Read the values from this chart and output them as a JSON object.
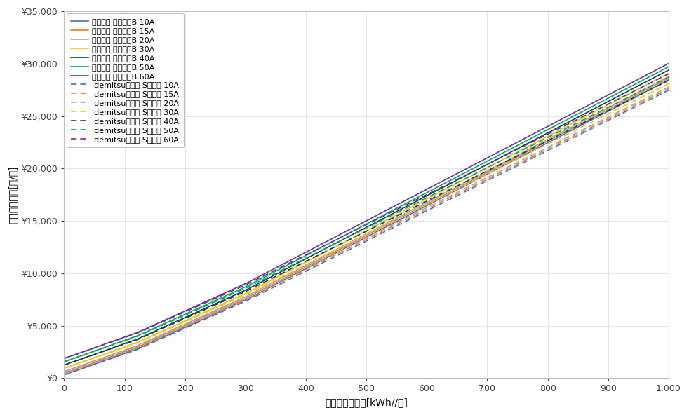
{
  "title": "",
  "xlabel": "月間電力使用量[kWh//月]",
  "ylabel": "推定電気料金[円/月]",
  "xlim": [
    0,
    1000
  ],
  "ylim": [
    0,
    35000
  ],
  "xticks": [
    0,
    100,
    200,
    300,
    400,
    500,
    600,
    700,
    800,
    900,
    1000
  ],
  "yticks": [
    0,
    5000,
    10000,
    15000,
    20000,
    25000,
    30000,
    35000
  ],
  "colors": {
    "10A": "#4472C4",
    "15A": "#ED7D31",
    "20A": "#A5A5A5",
    "30A": "#FFC000",
    "40A": "#1F3864",
    "50A": "#00B050",
    "60A": "#7030A0"
  },
  "chubu": {
    "10A": {
      "base": 311.75,
      "t1_limit": 120,
      "t1_rate": 20.37,
      "t2_limit": 300,
      "t2_rate": 26.07,
      "t3_rate": 30.02
    },
    "15A": {
      "base": 467.63,
      "t1_limit": 120,
      "t1_rate": 20.37,
      "t2_limit": 300,
      "t2_rate": 26.07,
      "t3_rate": 30.02
    },
    "20A": {
      "base": 623.5,
      "t1_limit": 120,
      "t1_rate": 20.37,
      "t2_limit": 300,
      "t2_rate": 26.07,
      "t3_rate": 30.02
    },
    "30A": {
      "base": 935.25,
      "t1_limit": 120,
      "t1_rate": 20.37,
      "t2_limit": 300,
      "t2_rate": 26.07,
      "t3_rate": 30.02
    },
    "40A": {
      "base": 1247.0,
      "t1_limit": 120,
      "t1_rate": 20.37,
      "t2_limit": 300,
      "t2_rate": 26.07,
      "t3_rate": 30.02
    },
    "50A": {
      "base": 1558.75,
      "t1_limit": 120,
      "t1_rate": 20.37,
      "t2_limit": 300,
      "t2_rate": 26.07,
      "t3_rate": 30.02
    },
    "60A": {
      "base": 1870.5,
      "t1_limit": 120,
      "t1_rate": 20.37,
      "t2_limit": 300,
      "t2_rate": 26.07,
      "t3_rate": 30.02
    }
  },
  "idemitsu": {
    "10A": {
      "base": 311.75,
      "t1_limit": 120,
      "t1_rate": 19.88,
      "t2_limit": 300,
      "t2_rate": 25.7,
      "t3_rate": 28.78
    },
    "15A": {
      "base": 467.63,
      "t1_limit": 120,
      "t1_rate": 19.88,
      "t2_limit": 300,
      "t2_rate": 25.7,
      "t3_rate": 28.78
    },
    "20A": {
      "base": 623.5,
      "t1_limit": 120,
      "t1_rate": 19.88,
      "t2_limit": 300,
      "t2_rate": 25.7,
      "t3_rate": 28.78
    },
    "30A": {
      "base": 935.25,
      "t1_limit": 120,
      "t1_rate": 19.88,
      "t2_limit": 300,
      "t2_rate": 25.7,
      "t3_rate": 28.78
    },
    "40A": {
      "base": 1247.0,
      "t1_limit": 120,
      "t1_rate": 19.88,
      "t2_limit": 300,
      "t2_rate": 25.7,
      "t3_rate": 28.78
    },
    "50A": {
      "base": 1558.75,
      "t1_limit": 120,
      "t1_rate": 19.88,
      "t2_limit": 300,
      "t2_rate": 25.7,
      "t3_rate": 28.78
    },
    "60A": {
      "base": 1870.5,
      "t1_limit": 120,
      "t1_rate": 19.88,
      "t2_limit": 300,
      "t2_rate": 25.7,
      "t3_rate": 28.78
    }
  },
  "ampere_list": [
    "10A",
    "15A",
    "20A",
    "30A",
    "40A",
    "50A",
    "60A"
  ],
  "chubu_label_prefix": "中部電力 従量電灯B ",
  "idemitsu_label_prefix": "idemitsuでんき Sプラン "
}
